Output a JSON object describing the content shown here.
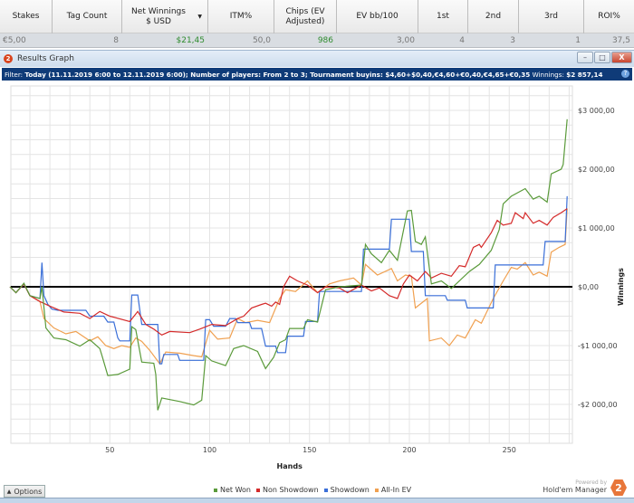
{
  "table": {
    "headers": [
      "Stakes",
      "Tag Count",
      "Net Winnings $ USD",
      "ITM%",
      "Chips (EV Adjusted)",
      "EV bb/100",
      "1st",
      "2nd",
      "3rd",
      "ROI%"
    ],
    "row": [
      "€5,00",
      "8",
      "$21,45",
      "50,0",
      "986",
      "3,00",
      "4",
      "3",
      "1",
      "37,5"
    ]
  },
  "window": {
    "title": "Results Graph",
    "logo": "2",
    "minimize": "–",
    "restore": "□",
    "close": "X"
  },
  "filter": {
    "label": "Filter:",
    "text": "Today (11.11.2019 6:00 to 12.11.2019 6:00); Number of players: From 2 to 3; Tournament buyins: $4,60+$0,40,€4,60+€0,40,€4,65+€0,35",
    "winnings_label": "Winnings:",
    "winnings": "$2 857,14",
    "help": "?"
  },
  "footer": {
    "options": "Options",
    "powered_by": "Powered by",
    "brand": "Hold'em Manager",
    "brand_logo": "2"
  },
  "chart_data": {
    "type": "line",
    "xlabel": "Hands",
    "ylabel": "Winnings",
    "xlim": [
      0,
      281
    ],
    "ylim": [
      -2500,
      3300
    ],
    "xticks": [
      50,
      100,
      150,
      200,
      250
    ],
    "xtick_labels": [
      "50",
      "100",
      "150",
      "200",
      "250"
    ],
    "yticks": [
      3000,
      2000,
      1000,
      0,
      -1000,
      -2000
    ],
    "ytick_labels": [
      "$3 000,00",
      "$2 000,00",
      "$1 000,00",
      "$0,00",
      "-$1 000,00",
      "-$2 000,00"
    ],
    "grid": true,
    "legend_position": "bottom",
    "series": [
      {
        "name": "Net Won",
        "color": "#5a9a3a",
        "points": [
          [
            0,
            0
          ],
          [
            3,
            -100
          ],
          [
            7,
            60
          ],
          [
            10,
            -150
          ],
          [
            15,
            -200
          ],
          [
            16,
            0
          ],
          [
            18,
            -700
          ],
          [
            22,
            -870
          ],
          [
            28,
            -900
          ],
          [
            35,
            -1010
          ],
          [
            40,
            -900
          ],
          [
            45,
            -1050
          ],
          [
            46,
            -1160
          ],
          [
            49,
            -1510
          ],
          [
            54,
            -1490
          ],
          [
            60,
            -1400
          ],
          [
            61,
            -680
          ],
          [
            63,
            -730
          ],
          [
            66,
            -1280
          ],
          [
            72,
            -1300
          ],
          [
            73,
            -1490
          ],
          [
            74,
            -2100
          ],
          [
            76,
            -1890
          ],
          [
            85,
            -1950
          ],
          [
            92,
            -2010
          ],
          [
            96,
            -1930
          ],
          [
            98,
            -1170
          ],
          [
            101,
            -1260
          ],
          [
            108,
            -1340
          ],
          [
            112,
            -1050
          ],
          [
            117,
            -1000
          ],
          [
            124,
            -1100
          ],
          [
            128,
            -1390
          ],
          [
            132,
            -1200
          ],
          [
            135,
            -950
          ],
          [
            138,
            -900
          ],
          [
            140,
            -710
          ],
          [
            147,
            -710
          ],
          [
            149,
            -560
          ],
          [
            154,
            -600
          ],
          [
            158,
            -50
          ],
          [
            165,
            0
          ],
          [
            176,
            30
          ],
          [
            178,
            720
          ],
          [
            181,
            560
          ],
          [
            186,
            410
          ],
          [
            190,
            620
          ],
          [
            194,
            450
          ],
          [
            199,
            1290
          ],
          [
            201,
            1300
          ],
          [
            203,
            770
          ],
          [
            206,
            720
          ],
          [
            208,
            850
          ],
          [
            211,
            50
          ],
          [
            216,
            100
          ],
          [
            221,
            -30
          ],
          [
            230,
            260
          ],
          [
            235,
            380
          ],
          [
            241,
            620
          ],
          [
            245,
            970
          ],
          [
            247,
            1410
          ],
          [
            251,
            1540
          ],
          [
            258,
            1670
          ],
          [
            262,
            1490
          ],
          [
            265,
            1540
          ],
          [
            269,
            1440
          ],
          [
            271,
            1920
          ],
          [
            276,
            2000
          ],
          [
            277,
            2080
          ],
          [
            279,
            2850
          ]
        ]
      },
      {
        "name": "Non Showdown",
        "color": "#d42a2a",
        "points": [
          [
            0,
            0
          ],
          [
            3,
            -100
          ],
          [
            7,
            50
          ],
          [
            10,
            -150
          ],
          [
            15,
            -250
          ],
          [
            20,
            -330
          ],
          [
            27,
            -430
          ],
          [
            35,
            -450
          ],
          [
            40,
            -540
          ],
          [
            45,
            -420
          ],
          [
            50,
            -500
          ],
          [
            60,
            -590
          ],
          [
            64,
            -420
          ],
          [
            68,
            -640
          ],
          [
            72,
            -720
          ],
          [
            76,
            -820
          ],
          [
            80,
            -760
          ],
          [
            90,
            -780
          ],
          [
            95,
            -720
          ],
          [
            101,
            -640
          ],
          [
            108,
            -660
          ],
          [
            114,
            -540
          ],
          [
            117,
            -500
          ],
          [
            121,
            -360
          ],
          [
            126,
            -300
          ],
          [
            128,
            -280
          ],
          [
            131,
            -330
          ],
          [
            133,
            -260
          ],
          [
            135,
            -300
          ],
          [
            137,
            0
          ],
          [
            140,
            180
          ],
          [
            144,
            100
          ],
          [
            149,
            30
          ],
          [
            154,
            -100
          ],
          [
            158,
            0
          ],
          [
            165,
            -20
          ],
          [
            169,
            -100
          ],
          [
            176,
            30
          ],
          [
            181,
            -70
          ],
          [
            185,
            -20
          ],
          [
            190,
            -150
          ],
          [
            194,
            -200
          ],
          [
            197,
            50
          ],
          [
            200,
            200
          ],
          [
            204,
            100
          ],
          [
            208,
            260
          ],
          [
            211,
            150
          ],
          [
            216,
            230
          ],
          [
            221,
            180
          ],
          [
            225,
            360
          ],
          [
            228,
            340
          ],
          [
            232,
            670
          ],
          [
            235,
            720
          ],
          [
            236,
            670
          ],
          [
            241,
            920
          ],
          [
            244,
            1130
          ],
          [
            247,
            1050
          ],
          [
            251,
            1080
          ],
          [
            253,
            1260
          ],
          [
            257,
            1160
          ],
          [
            258,
            1260
          ],
          [
            262,
            1080
          ],
          [
            265,
            1130
          ],
          [
            269,
            1050
          ],
          [
            272,
            1180
          ],
          [
            276,
            1260
          ],
          [
            279,
            1330
          ]
        ]
      },
      {
        "name": "Showdown",
        "color": "#3a6fd8",
        "points": [
          [
            0,
            0
          ],
          [
            3,
            -100
          ],
          [
            7,
            50
          ],
          [
            10,
            -150
          ],
          [
            15,
            -200
          ],
          [
            16,
            410
          ],
          [
            17,
            -150
          ],
          [
            19,
            -300
          ],
          [
            21,
            -380
          ],
          [
            24,
            -400
          ],
          [
            38,
            -400
          ],
          [
            40,
            -500
          ],
          [
            47,
            -500
          ],
          [
            49,
            -600
          ],
          [
            52,
            -600
          ],
          [
            54,
            -870
          ],
          [
            55,
            -920
          ],
          [
            60,
            -920
          ],
          [
            61,
            -140
          ],
          [
            64,
            -140
          ],
          [
            66,
            -640
          ],
          [
            74,
            -640
          ],
          [
            75,
            -1310
          ],
          [
            76,
            -1310
          ],
          [
            77,
            -1150
          ],
          [
            84,
            -1150
          ],
          [
            85,
            -1250
          ],
          [
            97,
            -1250
          ],
          [
            98,
            -560
          ],
          [
            100,
            -560
          ],
          [
            102,
            -670
          ],
          [
            108,
            -670
          ],
          [
            110,
            -540
          ],
          [
            113,
            -540
          ],
          [
            114,
            -610
          ],
          [
            120,
            -610
          ],
          [
            121,
            -710
          ],
          [
            126,
            -710
          ],
          [
            128,
            -1010
          ],
          [
            133,
            -1010
          ],
          [
            134,
            -1120
          ],
          [
            138,
            -1120
          ],
          [
            139,
            -840
          ],
          [
            147,
            -840
          ],
          [
            148,
            -590
          ],
          [
            154,
            -590
          ],
          [
            155,
            -80
          ],
          [
            176,
            -80
          ],
          [
            177,
            640
          ],
          [
            190,
            640
          ],
          [
            191,
            1150
          ],
          [
            200,
            1150
          ],
          [
            201,
            600
          ],
          [
            207,
            600
          ],
          [
            208,
            -150
          ],
          [
            218,
            -150
          ],
          [
            219,
            -230
          ],
          [
            228,
            -230
          ],
          [
            229,
            -360
          ],
          [
            242,
            -360
          ],
          [
            243,
            370
          ],
          [
            267,
            370
          ],
          [
            268,
            770
          ],
          [
            278,
            770
          ],
          [
            279,
            1540
          ]
        ]
      },
      {
        "name": "All-In EV",
        "color": "#f0a050",
        "points": [
          [
            0,
            0
          ],
          [
            3,
            -100
          ],
          [
            7,
            50
          ],
          [
            10,
            -150
          ],
          [
            15,
            -250
          ],
          [
            17,
            -540
          ],
          [
            22,
            -700
          ],
          [
            28,
            -800
          ],
          [
            33,
            -760
          ],
          [
            40,
            -920
          ],
          [
            44,
            -850
          ],
          [
            48,
            -1000
          ],
          [
            52,
            -1050
          ],
          [
            56,
            -1000
          ],
          [
            60,
            -1030
          ],
          [
            63,
            -870
          ],
          [
            66,
            -930
          ],
          [
            70,
            -1080
          ],
          [
            75,
            -1310
          ],
          [
            78,
            -1110
          ],
          [
            85,
            -1130
          ],
          [
            92,
            -1170
          ],
          [
            96,
            -1190
          ],
          [
            100,
            -740
          ],
          [
            104,
            -890
          ],
          [
            110,
            -870
          ],
          [
            114,
            -540
          ],
          [
            118,
            -610
          ],
          [
            124,
            -570
          ],
          [
            130,
            -610
          ],
          [
            135,
            -200
          ],
          [
            138,
            -50
          ],
          [
            143,
            -80
          ],
          [
            149,
            100
          ],
          [
            154,
            -100
          ],
          [
            160,
            50
          ],
          [
            165,
            100
          ],
          [
            172,
            150
          ],
          [
            176,
            30
          ],
          [
            178,
            380
          ],
          [
            184,
            200
          ],
          [
            191,
            310
          ],
          [
            194,
            100
          ],
          [
            198,
            200
          ],
          [
            201,
            180
          ],
          [
            203,
            -360
          ],
          [
            209,
            -200
          ],
          [
            210,
            -920
          ],
          [
            216,
            -870
          ],
          [
            220,
            -1000
          ],
          [
            224,
            -820
          ],
          [
            228,
            -870
          ],
          [
            233,
            -560
          ],
          [
            236,
            -620
          ],
          [
            242,
            -200
          ],
          [
            247,
            100
          ],
          [
            251,
            330
          ],
          [
            254,
            300
          ],
          [
            258,
            410
          ],
          [
            262,
            200
          ],
          [
            265,
            250
          ],
          [
            269,
            180
          ],
          [
            271,
            590
          ],
          [
            275,
            670
          ],
          [
            278,
            720
          ],
          [
            279,
            1330
          ]
        ]
      }
    ]
  }
}
